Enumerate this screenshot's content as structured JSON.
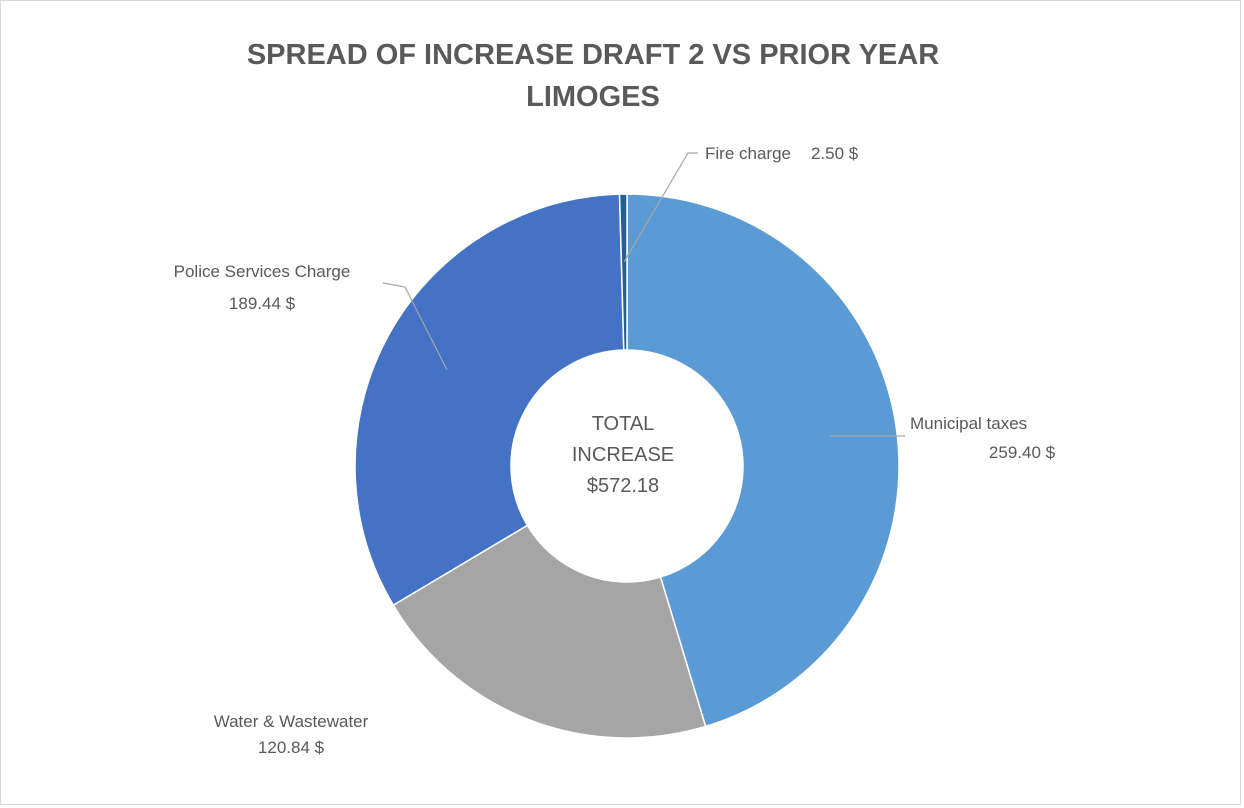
{
  "chart_data": {
    "type": "donut",
    "title": [
      "SPREAD OF INCREASE DRAFT 2 VS PRIOR YEAR",
      "LIMOGES"
    ],
    "categories": [
      "Municipal taxes",
      "Water & Wastewater",
      "Police Services Charge",
      "Fire charge"
    ],
    "values": [
      259.4,
      120.84,
      189.44,
      2.5
    ],
    "value_labels": [
      "259.40 $",
      "120.84 $",
      "189.44 $",
      "2.50 $"
    ],
    "colors": [
      "#5b9bd5",
      "#a5a5a5",
      "#4472c4",
      "#255e91"
    ],
    "center_label": [
      "TOTAL",
      "INCREASE",
      "$572.18"
    ]
  }
}
